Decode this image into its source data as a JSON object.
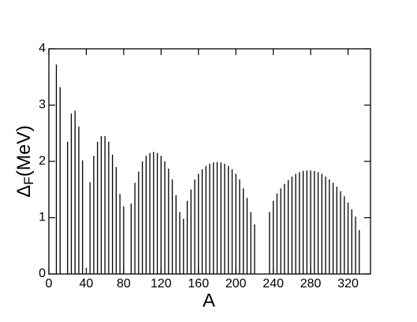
{
  "chart_data": {
    "type": "impulse",
    "xlabel": "A",
    "ylabel_symbol": "Δ",
    "ylabel_subscript": "F",
    "ylabel_unit": "(MeV)",
    "color": "#000000",
    "xlim": [
      0,
      344
    ],
    "xticks": [
      0,
      40,
      80,
      120,
      160,
      200,
      240,
      280,
      320
    ],
    "ylim": [
      0,
      4
    ],
    "yticks": [
      0,
      1,
      2,
      3,
      4
    ],
    "x": [
      8,
      12,
      20,
      24,
      28,
      32,
      36,
      44,
      48,
      52,
      56,
      60,
      64,
      68,
      72,
      76,
      80,
      88,
      92,
      96,
      100,
      104,
      108,
      112,
      116,
      120,
      124,
      128,
      132,
      136,
      140,
      144,
      148,
      152,
      156,
      160,
      164,
      168,
      172,
      176,
      180,
      184,
      188,
      192,
      196,
      200,
      204,
      208,
      212,
      216,
      220,
      236,
      240,
      244,
      248,
      252,
      256,
      260,
      264,
      268,
      272,
      276,
      280,
      284,
      288,
      292,
      296,
      300,
      304,
      308,
      312,
      316,
      320,
      324,
      328,
      332
    ],
    "values": [
      3.72,
      3.32,
      2.35,
      2.85,
      2.9,
      2.62,
      2.02,
      1.63,
      2.1,
      2.35,
      2.45,
      2.45,
      2.35,
      2.12,
      1.9,
      1.42,
      1.2,
      1.25,
      1.62,
      1.82,
      2.0,
      2.1,
      2.15,
      2.17,
      2.15,
      2.1,
      2.0,
      1.87,
      1.68,
      1.4,
      1.1,
      0.98,
      1.3,
      1.5,
      1.68,
      1.78,
      1.86,
      1.92,
      1.96,
      1.98,
      1.99,
      1.98,
      1.96,
      1.92,
      1.86,
      1.78,
      1.68,
      1.52,
      1.35,
      1.1,
      0.88,
      1.1,
      1.3,
      1.43,
      1.52,
      1.6,
      1.67,
      1.73,
      1.78,
      1.81,
      1.83,
      1.84,
      1.84,
      1.83,
      1.81,
      1.78,
      1.73,
      1.68,
      1.62,
      1.55,
      1.47,
      1.38,
      1.27,
      1.15,
      1.02,
      0.78
    ]
  }
}
